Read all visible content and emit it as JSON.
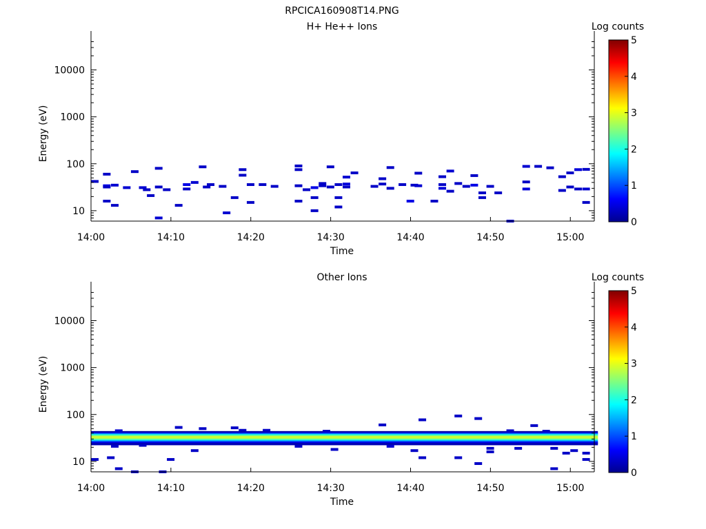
{
  "figure_title": "RPCICA160908T14.PNG",
  "colors": {
    "axis": "#000000",
    "background": "#ffffff"
  },
  "chart_data": [
    {
      "type": "heatmap",
      "title": "H+ He++ Ions",
      "xlabel": "Time",
      "ylabel": "Energy (eV)",
      "colorbar_label": "Log counts",
      "y_scale": "log",
      "ylim": [
        6,
        45000
      ],
      "xlim": [
        "14:00",
        "15:03"
      ],
      "x_ticks": [
        "14:00",
        "14:10",
        "14:20",
        "14:30",
        "14:40",
        "14:50",
        "15:00"
      ],
      "y_ticks": [
        10,
        100,
        1000,
        10000
      ],
      "y_tick_labels": [
        "10",
        "100",
        "1000",
        "10000"
      ],
      "colorbar_range": [
        0,
        5
      ],
      "colorbar_ticks": [
        "0",
        "1",
        "2",
        "3",
        "4",
        "5"
      ],
      "colormap": "jet",
      "grid": false,
      "cells": [
        {
          "t": 0.0,
          "e": 42,
          "v": 0.35
        },
        {
          "t": 1.5,
          "e": 60,
          "v": 0.35
        },
        {
          "t": 1.5,
          "e": 34,
          "v": 0.5
        },
        {
          "t": 1.5,
          "e": 32,
          "v": 0.35
        },
        {
          "t": 1.5,
          "e": 16,
          "v": 0.35
        },
        {
          "t": 2.5,
          "e": 35,
          "v": 0.4
        },
        {
          "t": 2.5,
          "e": 13,
          "v": 0.35
        },
        {
          "t": 5.0,
          "e": 68,
          "v": 0.35
        },
        {
          "t": 4.0,
          "e": 31,
          "v": 0.4
        },
        {
          "t": 6.0,
          "e": 31,
          "v": 0.4
        },
        {
          "t": 6.5,
          "e": 28,
          "v": 0.35
        },
        {
          "t": 7.0,
          "e": 21,
          "v": 0.35
        },
        {
          "t": 8.0,
          "e": 80,
          "v": 0.35
        },
        {
          "t": 8.0,
          "e": 32,
          "v": 0.35
        },
        {
          "t": 8.0,
          "e": 7,
          "v": 0.4
        },
        {
          "t": 9.0,
          "e": 28,
          "v": 0.35
        },
        {
          "t": 10.5,
          "e": 13,
          "v": 0.35
        },
        {
          "t": 11.5,
          "e": 36,
          "v": 0.5
        },
        {
          "t": 11.5,
          "e": 29,
          "v": 0.35
        },
        {
          "t": 12.5,
          "e": 40,
          "v": 0.4
        },
        {
          "t": 13.5,
          "e": 86,
          "v": 0.35
        },
        {
          "t": 14.0,
          "e": 32,
          "v": 0.35
        },
        {
          "t": 14.5,
          "e": 36,
          "v": 0.35
        },
        {
          "t": 16.0,
          "e": 33,
          "v": 0.35
        },
        {
          "t": 16.5,
          "e": 9,
          "v": 0.4
        },
        {
          "t": 17.5,
          "e": 19,
          "v": 0.35
        },
        {
          "t": 18.5,
          "e": 75,
          "v": 0.35
        },
        {
          "t": 18.5,
          "e": 57,
          "v": 0.35
        },
        {
          "t": 19.5,
          "e": 36,
          "v": 0.35
        },
        {
          "t": 19.5,
          "e": 15,
          "v": 0.35
        },
        {
          "t": 21.0,
          "e": 36,
          "v": 0.35
        },
        {
          "t": 22.5,
          "e": 33,
          "v": 0.35
        },
        {
          "t": 25.5,
          "e": 90,
          "v": 0.35
        },
        {
          "t": 25.5,
          "e": 75,
          "v": 0.35
        },
        {
          "t": 25.5,
          "e": 34,
          "v": 0.35
        },
        {
          "t": 25.5,
          "e": 16,
          "v": 0.35
        },
        {
          "t": 26.5,
          "e": 28,
          "v": 0.35
        },
        {
          "t": 27.5,
          "e": 31,
          "v": 0.5
        },
        {
          "t": 27.5,
          "e": 19,
          "v": 0.35
        },
        {
          "t": 27.5,
          "e": 10,
          "v": 0.35
        },
        {
          "t": 28.5,
          "e": 38,
          "v": 0.35
        },
        {
          "t": 28.5,
          "e": 34,
          "v": 0.35
        },
        {
          "t": 29.5,
          "e": 86,
          "v": 0.35
        },
        {
          "t": 29.5,
          "e": 32,
          "v": 0.35
        },
        {
          "t": 30.5,
          "e": 36,
          "v": 0.35
        },
        {
          "t": 30.5,
          "e": 19,
          "v": 0.35
        },
        {
          "t": 30.5,
          "e": 12,
          "v": 0.35
        },
        {
          "t": 31.5,
          "e": 52,
          "v": 0.4
        },
        {
          "t": 31.5,
          "e": 37,
          "v": 0.45
        },
        {
          "t": 31.5,
          "e": 32,
          "v": 0.35
        },
        {
          "t": 32.5,
          "e": 64,
          "v": 0.35
        },
        {
          "t": 35.0,
          "e": 33,
          "v": 0.35
        },
        {
          "t": 36.0,
          "e": 48,
          "v": 0.35
        },
        {
          "t": 36.0,
          "e": 37,
          "v": 0.35
        },
        {
          "t": 37.0,
          "e": 83,
          "v": 0.35
        },
        {
          "t": 37.0,
          "e": 30,
          "v": 0.35
        },
        {
          "t": 38.5,
          "e": 36,
          "v": 0.35
        },
        {
          "t": 39.5,
          "e": 16,
          "v": 0.5
        },
        {
          "t": 40.0,
          "e": 35,
          "v": 0.35
        },
        {
          "t": 40.5,
          "e": 63,
          "v": 0.35
        },
        {
          "t": 40.5,
          "e": 34,
          "v": 0.4
        },
        {
          "t": 42.5,
          "e": 16,
          "v": 0.35
        },
        {
          "t": 43.5,
          "e": 53,
          "v": 0.35
        },
        {
          "t": 43.5,
          "e": 36,
          "v": 0.35
        },
        {
          "t": 43.5,
          "e": 30,
          "v": 0.45
        },
        {
          "t": 44.5,
          "e": 70,
          "v": 0.4
        },
        {
          "t": 44.5,
          "e": 26,
          "v": 0.35
        },
        {
          "t": 45.5,
          "e": 38,
          "v": 0.35
        },
        {
          "t": 46.5,
          "e": 33,
          "v": 0.35
        },
        {
          "t": 47.5,
          "e": 56,
          "v": 0.35
        },
        {
          "t": 47.5,
          "e": 35,
          "v": 0.5
        },
        {
          "t": 48.5,
          "e": 24,
          "v": 0.35
        },
        {
          "t": 48.5,
          "e": 19,
          "v": 0.35
        },
        {
          "t": 49.5,
          "e": 33,
          "v": 0.35
        },
        {
          "t": 50.5,
          "e": 24,
          "v": 0.35
        },
        {
          "t": 52.0,
          "e": 6,
          "v": 0.35
        },
        {
          "t": 54.0,
          "e": 88,
          "v": 0.4
        },
        {
          "t": 54.0,
          "e": 41,
          "v": 0.35
        },
        {
          "t": 54.0,
          "e": 29,
          "v": 0.45
        },
        {
          "t": 55.5,
          "e": 88,
          "v": 0.35
        },
        {
          "t": 57.0,
          "e": 82,
          "v": 0.35
        },
        {
          "t": 58.5,
          "e": 53,
          "v": 0.35
        },
        {
          "t": 58.5,
          "e": 27,
          "v": 0.35
        },
        {
          "t": 59.5,
          "e": 64,
          "v": 0.35
        },
        {
          "t": 59.5,
          "e": 32,
          "v": 0.35
        },
        {
          "t": 60.5,
          "e": 75,
          "v": 0.45
        },
        {
          "t": 60.5,
          "e": 29,
          "v": 0.35
        },
        {
          "t": 61.5,
          "e": 76,
          "v": 0.35
        },
        {
          "t": 61.5,
          "e": 29,
          "v": 0.4
        },
        {
          "t": 61.5,
          "e": 15,
          "v": 0.35
        }
      ]
    },
    {
      "type": "heatmap",
      "title": "Other Ions",
      "xlabel": "Time",
      "ylabel": "Energy (eV)",
      "colorbar_label": "Log counts",
      "y_scale": "log",
      "ylim": [
        6,
        45000
      ],
      "xlim": [
        "14:00",
        "15:03"
      ],
      "x_ticks": [
        "14:00",
        "14:10",
        "14:20",
        "14:30",
        "14:40",
        "14:50",
        "15:00"
      ],
      "y_ticks": [
        10,
        100,
        1000,
        10000
      ],
      "y_tick_labels": [
        "10",
        "100",
        "1000",
        "10000"
      ],
      "colorbar_range": [
        0,
        5
      ],
      "colorbar_ticks": [
        "0",
        "1",
        "2",
        "3",
        "4",
        "5"
      ],
      "colormap": "jet",
      "grid": false,
      "band": {
        "t_start": 0.0,
        "t_end": 62.5,
        "profile": [
          {
            "e": 42,
            "v": 0.2
          },
          {
            "e": 39,
            "v": 0.8
          },
          {
            "e": 37,
            "v": 1.7
          },
          {
            "e": 35,
            "v": 2.4
          },
          {
            "e": 33,
            "v": 2.85
          },
          {
            "e": 31,
            "v": 2.9
          },
          {
            "e": 29.5,
            "v": 2.6
          },
          {
            "e": 28,
            "v": 2.0
          },
          {
            "e": 26.5,
            "v": 1.2
          },
          {
            "e": 25,
            "v": 0.5
          },
          {
            "e": 23.5,
            "v": 0.25
          }
        ]
      },
      "cells": [
        {
          "t": 0.0,
          "e": 11,
          "v": 0.35
        },
        {
          "t": 2.0,
          "e": 12,
          "v": 0.35
        },
        {
          "t": 2.5,
          "e": 21,
          "v": 0.35
        },
        {
          "t": 3.0,
          "e": 45,
          "v": 0.4
        },
        {
          "t": 3.0,
          "e": 7,
          "v": 0.35
        },
        {
          "t": 5.0,
          "e": 6,
          "v": 0.35
        },
        {
          "t": 6.0,
          "e": 22,
          "v": 0.35
        },
        {
          "t": 8.5,
          "e": 6,
          "v": 0.35
        },
        {
          "t": 9.5,
          "e": 11,
          "v": 0.35
        },
        {
          "t": 10.5,
          "e": 53,
          "v": 0.35
        },
        {
          "t": 12.5,
          "e": 17,
          "v": 0.35
        },
        {
          "t": 13.5,
          "e": 50,
          "v": 0.35
        },
        {
          "t": 17.5,
          "e": 52,
          "v": 0.35
        },
        {
          "t": 18.5,
          "e": 46,
          "v": 0.35
        },
        {
          "t": 21.5,
          "e": 46,
          "v": 0.35
        },
        {
          "t": 25.5,
          "e": 21,
          "v": 0.35
        },
        {
          "t": 29.0,
          "e": 44,
          "v": 0.35
        },
        {
          "t": 30.0,
          "e": 18,
          "v": 0.35
        },
        {
          "t": 36.0,
          "e": 60,
          "v": 0.35
        },
        {
          "t": 37.0,
          "e": 21,
          "v": 0.4
        },
        {
          "t": 40.0,
          "e": 17,
          "v": 0.35
        },
        {
          "t": 41.0,
          "e": 77,
          "v": 0.35
        },
        {
          "t": 41.0,
          "e": 12,
          "v": 0.35
        },
        {
          "t": 45.5,
          "e": 93,
          "v": 0.35
        },
        {
          "t": 45.5,
          "e": 12,
          "v": 0.35
        },
        {
          "t": 48.0,
          "e": 82,
          "v": 0.35
        },
        {
          "t": 48.0,
          "e": 9,
          "v": 0.35
        },
        {
          "t": 49.5,
          "e": 19,
          "v": 0.35
        },
        {
          "t": 49.5,
          "e": 16,
          "v": 0.35
        },
        {
          "t": 52.0,
          "e": 45,
          "v": 0.35
        },
        {
          "t": 53.0,
          "e": 19,
          "v": 0.35
        },
        {
          "t": 55.0,
          "e": 58,
          "v": 0.35
        },
        {
          "t": 56.5,
          "e": 44,
          "v": 0.35
        },
        {
          "t": 57.5,
          "e": 19,
          "v": 0.35
        },
        {
          "t": 57.5,
          "e": 7,
          "v": 0.35
        },
        {
          "t": 59.0,
          "e": 15,
          "v": 0.35
        },
        {
          "t": 60.0,
          "e": 17,
          "v": 0.35
        },
        {
          "t": 61.5,
          "e": 11,
          "v": 0.35
        },
        {
          "t": 61.5,
          "e": 15,
          "v": 0.35
        }
      ]
    }
  ]
}
